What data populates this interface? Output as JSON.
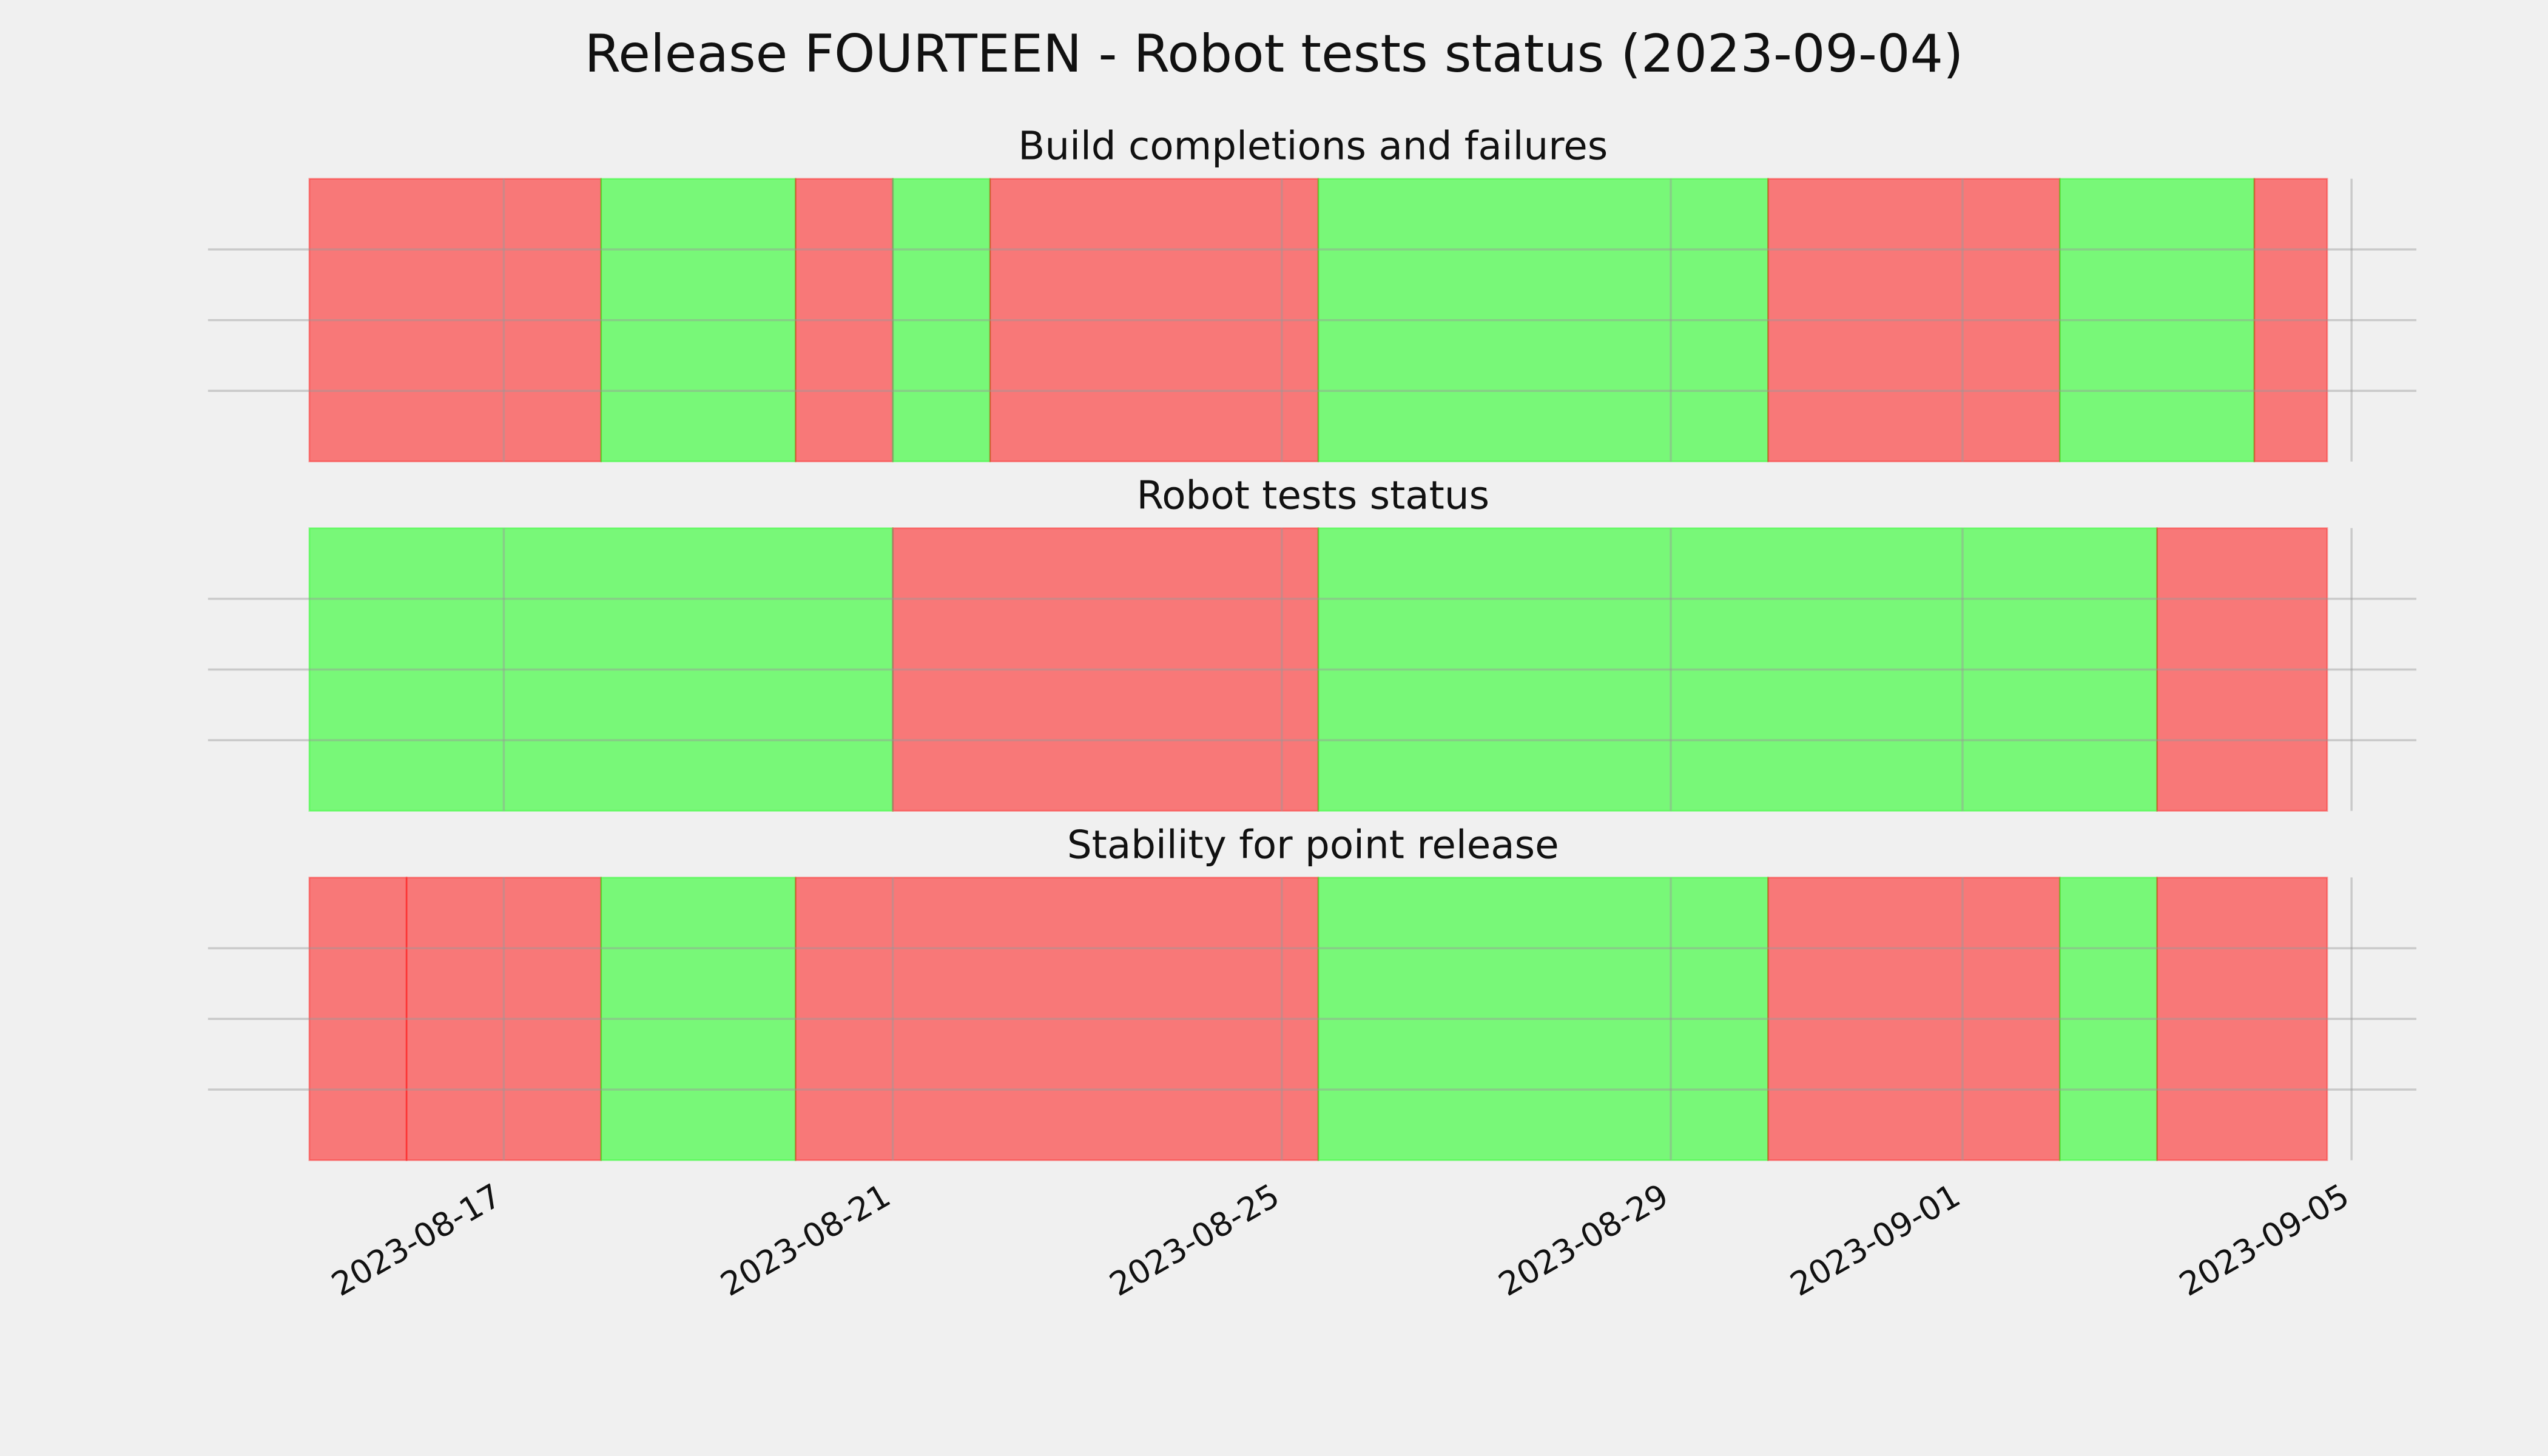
{
  "title": "Release FOURTEEN - Robot tests status (2023-09-04)",
  "chart_data": [
    {
      "type": "timeline",
      "title": "Build completions and failures",
      "starts": [
        "2023-08-15",
        "2023-08-18",
        "2023-08-20",
        "2023-08-21",
        "2023-08-22",
        "2023-08-25T09:00",
        "2023-08-30",
        "2023-09-02",
        "2023-09-04"
      ],
      "ends": [
        "2023-08-18",
        "2023-08-20",
        "2023-08-21",
        "2023-08-22",
        "2023-08-25T09:00",
        "2023-08-30",
        "2023-09-02",
        "2023-09-04",
        "2023-09-04T18:00"
      ],
      "colors": [
        "#ff0000",
        "#00ff00",
        "#ff0000",
        "#00ff00",
        "#ff0000",
        "#00ff00",
        "#ff0000",
        "#00ff00",
        "#ff0000"
      ],
      "xlim": [
        "2023-08-13T23:00",
        "2023-09-05T16:00"
      ],
      "xticks": [
        "2023-08-17",
        "2023-08-21",
        "2023-08-25",
        "2023-08-29",
        "2023-09-01",
        "2023-09-05"
      ],
      "ylim": [
        0,
        1
      ],
      "yticks": [
        0.25,
        0.5,
        0.75
      ],
      "grid": true
    },
    {
      "type": "timeline",
      "title": "Robot tests status",
      "starts": [
        "2023-08-15",
        "2023-08-21",
        "2023-08-25T09:00",
        "2023-09-03"
      ],
      "ends": [
        "2023-08-21",
        "2023-08-25T09:00",
        "2023-09-03",
        "2023-09-04T18:00"
      ],
      "colors": [
        "#00ff00",
        "#ff0000",
        "#00ff00",
        "#ff0000"
      ],
      "xlim": [
        "2023-08-13T23:00",
        "2023-09-05T16:00"
      ],
      "xticks": [
        "2023-08-17",
        "2023-08-21",
        "2023-08-25",
        "2023-08-29",
        "2023-09-01",
        "2023-09-05"
      ],
      "ylim": [
        0,
        1
      ],
      "yticks": [
        0.25,
        0.5,
        0.75
      ],
      "grid": true
    },
    {
      "type": "timeline",
      "title": "Stability for point release",
      "starts": [
        "2023-08-15",
        "2023-08-16",
        "2023-08-18",
        "2023-08-20",
        "2023-08-25T09:00",
        "2023-08-30",
        "2023-09-02",
        "2023-09-03"
      ],
      "ends": [
        "2023-08-16",
        "2023-08-18",
        "2023-08-20",
        "2023-08-25T09:00",
        "2023-08-30",
        "2023-09-02",
        "2023-09-03",
        "2023-09-04T18:00"
      ],
      "colors": [
        "#ff0000",
        "#ff0000",
        "#00ff00",
        "#ff0000",
        "#00ff00",
        "#ff0000",
        "#00ff00",
        "#ff0000"
      ],
      "xlim": [
        "2023-08-13T23:00",
        "2023-09-05T16:00"
      ],
      "xticks": [
        "2023-08-17",
        "2023-08-21",
        "2023-08-25",
        "2023-08-29",
        "2023-09-01",
        "2023-09-05"
      ],
      "ylim": [
        0,
        1
      ],
      "yticks": [
        0.25,
        0.5,
        0.75
      ],
      "grid": true
    }
  ]
}
